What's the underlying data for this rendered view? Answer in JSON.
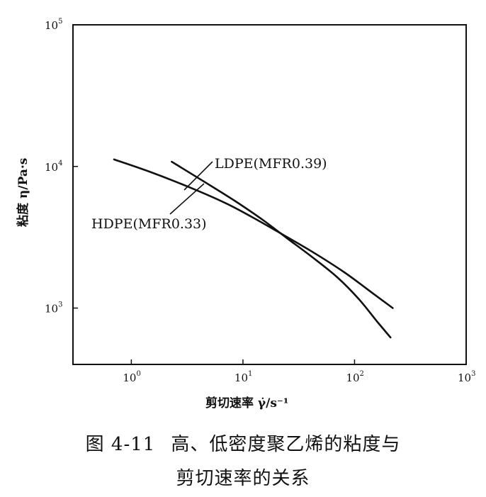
{
  "chart_data": {
    "type": "line",
    "x_scale": "log",
    "y_scale": "log",
    "xlim": [
      0.3,
      1000
    ],
    "ylim": [
      400,
      100000
    ],
    "x_ticks": [
      {
        "value": 1,
        "base": "10",
        "exp": "0"
      },
      {
        "value": 10,
        "base": "10",
        "exp": "1"
      },
      {
        "value": 100,
        "base": "10",
        "exp": "2"
      },
      {
        "value": 1000,
        "base": "10",
        "exp": "3"
      }
    ],
    "y_ticks": [
      {
        "value": 1000,
        "base": "10",
        "exp": "3"
      },
      {
        "value": 10000,
        "base": "10",
        "exp": "4"
      },
      {
        "value": 100000,
        "base": "10",
        "exp": "5"
      }
    ],
    "xlabel": "剪切速率 γ̇/s⁻¹",
    "ylabel": "粘度 η/Pa·s",
    "grid": false,
    "series": [
      {
        "name": "LDPE(MFR0.39)",
        "points": [
          [
            2.3,
            10800
          ],
          [
            4.5,
            7800
          ],
          [
            8.5,
            5700
          ],
          [
            15,
            4200
          ],
          [
            25,
            3100
          ],
          [
            40,
            2350
          ],
          [
            70,
            1650
          ],
          [
            110,
            1150
          ],
          [
            160,
            800
          ],
          [
            210,
            620
          ]
        ]
      },
      {
        "name": "HDPE(MFR0.33)",
        "points": [
          [
            0.7,
            11200
          ],
          [
            1.5,
            9100
          ],
          [
            3.5,
            7000
          ],
          [
            7,
            5500
          ],
          [
            12,
            4400
          ],
          [
            20,
            3500
          ],
          [
            40,
            2550
          ],
          [
            80,
            1800
          ],
          [
            150,
            1250
          ],
          [
            220,
            1000
          ]
        ]
      }
    ]
  },
  "caption": {
    "figure_number": "图 4-11",
    "line1": "高、低密度聚乙烯的粘度与",
    "line2": "剪切速率的关系"
  }
}
